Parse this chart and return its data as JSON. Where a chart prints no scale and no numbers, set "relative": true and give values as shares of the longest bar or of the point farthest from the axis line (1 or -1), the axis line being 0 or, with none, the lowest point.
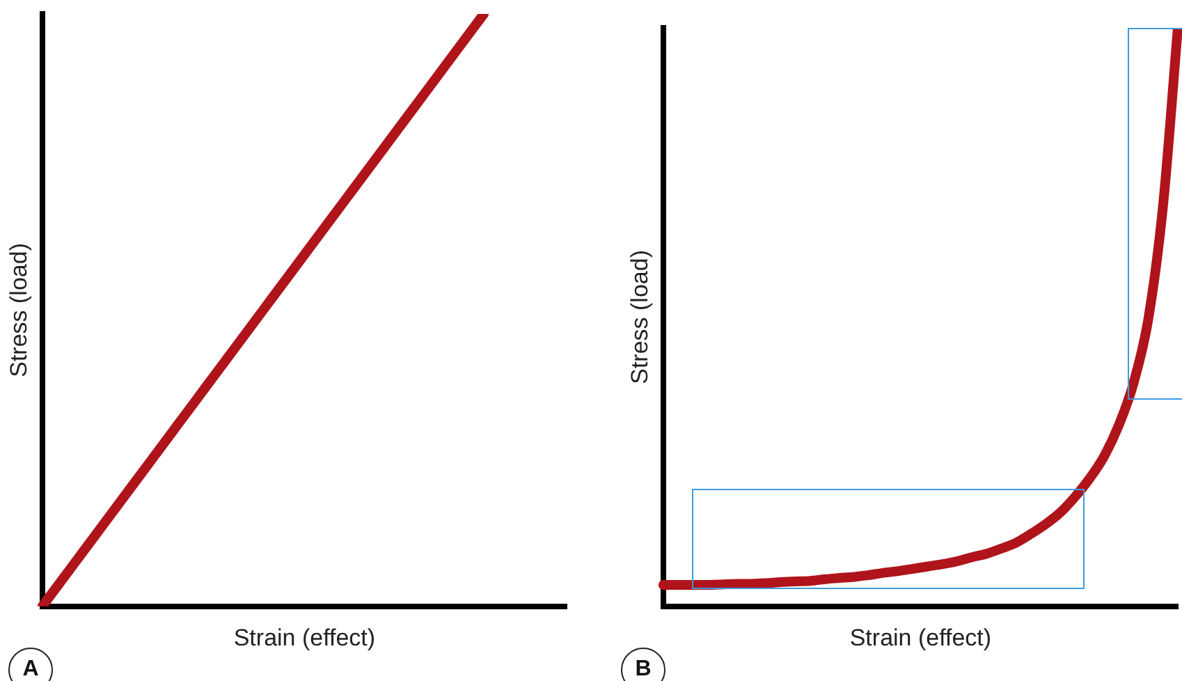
{
  "chart_data": [
    {
      "type": "line",
      "relative": true,
      "xlabel": "Strain (effect)",
      "ylabel": "Stress (load)",
      "annotations": [
        "A"
      ],
      "categories": [
        null,
        null,
        null,
        null,
        null,
        null,
        null,
        null,
        null,
        null,
        null,
        null,
        null,
        null,
        null,
        null,
        null,
        null,
        null,
        null
      ],
      "series": [
        {
          "color": "#b0141b",
          "values": [
            0,
            0.0625,
            0.125,
            0.1875,
            0.25,
            0.3125,
            0.375,
            0.4375,
            0.5,
            0.5625,
            0.625,
            0.6875,
            0.75,
            0.8125,
            0.875,
            0.9375,
            1,
            null,
            null,
            null
          ]
        }
      ]
    },
    {
      "type": "line",
      "relative": true,
      "xlabel": "Strain (effect)",
      "ylabel": "Stress (load)",
      "annotations": [
        "B"
      ],
      "categories": [
        null,
        null,
        null,
        null,
        null,
        null,
        null,
        null,
        null,
        null,
        null,
        null,
        null,
        null,
        null,
        null,
        null,
        null,
        null,
        null,
        null,
        null,
        null,
        null,
        null,
        null,
        null,
        null,
        null,
        null,
        null,
        null,
        null,
        null,
        null,
        null
      ],
      "series": [
        {
          "color": "#b0141b",
          "values": [
            0.037,
            0.037,
            0.037,
            0.037,
            0.038,
            0.039,
            0.039,
            0.04,
            0.042,
            0.043,
            0.044,
            0.047,
            0.049,
            0.051,
            0.054,
            0.058,
            0.061,
            0.065,
            0.069,
            0.073,
            0.078,
            0.085,
            0.091,
            0.1,
            0.11,
            0.125,
            0.142,
            0.162,
            0.189,
            0.221,
            0.26,
            0.314,
            0.387,
            0.498,
            0.694,
            1
          ]
        }
      ]
    }
  ]
}
